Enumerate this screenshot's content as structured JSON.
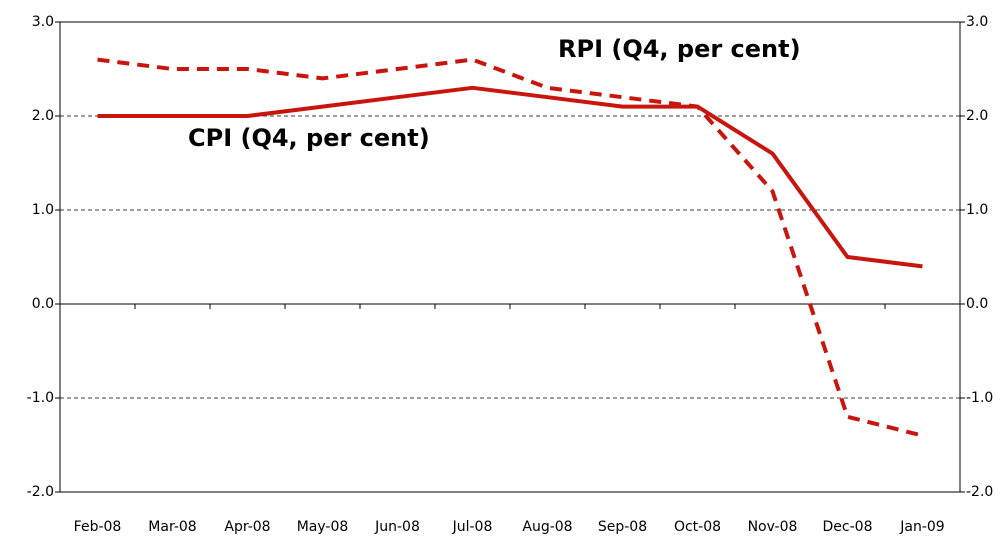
{
  "chart_data": {
    "type": "line",
    "categories": [
      "Feb-08",
      "Mar-08",
      "Apr-08",
      "May-08",
      "Jun-08",
      "Jul-08",
      "Aug-08",
      "Sep-08",
      "Oct-08",
      "Nov-08",
      "Dec-08",
      "Jan-09"
    ],
    "series": [
      {
        "name": "CPI (Q4, per cent)",
        "color": "#c8160e",
        "dashed": false,
        "values": [
          2.0,
          2.0,
          2.0,
          2.1,
          2.2,
          2.3,
          2.2,
          2.1,
          2.1,
          1.6,
          0.5,
          0.4
        ]
      },
      {
        "name": "RPI (Q4, per cent)",
        "color": "#c8160e",
        "dashed": true,
        "values": [
          2.6,
          2.5,
          2.5,
          2.4,
          2.5,
          2.6,
          2.3,
          2.2,
          2.1,
          1.2,
          -1.2,
          -1.4
        ]
      }
    ],
    "ylim": [
      -2.0,
      3.0
    ],
    "yticks": [
      {
        "value": -2,
        "label": "-2.0"
      },
      {
        "value": -1,
        "label": "-1.0"
      },
      {
        "value": 0,
        "label": "0.0"
      },
      {
        "value": 1,
        "label": "1.0"
      },
      {
        "value": 2,
        "label": "2.0"
      },
      {
        "value": 3,
        "label": "3.0"
      }
    ],
    "grid": true
  }
}
